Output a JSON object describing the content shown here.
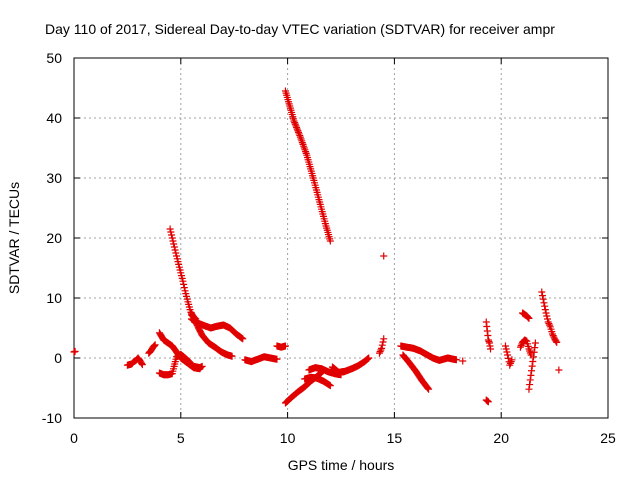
{
  "chart_data": {
    "type": "scatter",
    "title": "Day 110 of 2017, Sidereal Day-to-day VTEC variation (SDTVAR) for receiver ampr",
    "xlabel": "GPS time / hours",
    "ylabel": "SDTVAR / TECUs",
    "xlim": [
      0,
      25
    ],
    "ylim": [
      -10,
      50
    ],
    "xticks": [
      0,
      5,
      10,
      15,
      20,
      25
    ],
    "yticks": [
      -10,
      0,
      10,
      20,
      30,
      40,
      50
    ],
    "grid": true,
    "marker": "+",
    "color": "#e00000",
    "series": [
      {
        "name": "SDTVAR",
        "segments": [
          {
            "x": [
              0.0,
              0.05
            ],
            "y": [
              1.0,
              1.1
            ]
          },
          {
            "x": [
              2.5,
              2.7,
              2.8,
              2.9,
              3.0,
              3.1,
              3.2
            ],
            "y": [
              -1.2,
              -1.0,
              -0.6,
              -0.4,
              0.0,
              -0.5,
              -1.1
            ]
          },
          {
            "x": [
              3.5,
              3.6,
              3.7,
              3.8
            ],
            "y": [
              0.8,
              1.2,
              1.8,
              2.2
            ]
          },
          {
            "x": [
              4.0,
              4.2,
              4.4,
              4.6,
              4.8,
              5.0,
              5.3,
              5.6,
              5.9,
              6.0
            ],
            "y": [
              -2.5,
              -2.8,
              -2.8,
              -2.6,
              0.2,
              0.6,
              -0.3,
              -1.4,
              -1.6,
              -1.4
            ]
          },
          {
            "x": [
              4.0,
              4.2,
              4.4,
              4.6,
              4.8,
              5.0,
              5.3,
              5.6,
              5.9
            ],
            "y": [
              4.2,
              3.0,
              2.5,
              2.0,
              1.0,
              0.0,
              -0.8,
              -1.6,
              -1.8
            ]
          },
          {
            "x": [
              4.5,
              4.6,
              4.7,
              4.8,
              4.9,
              5.0,
              5.1,
              5.2,
              5.3,
              5.4,
              5.5,
              5.7
            ],
            "y": [
              21.5,
              20.0,
              18.5,
              17.0,
              15.6,
              14.2,
              12.8,
              11.2,
              9.8,
              8.5,
              7.2,
              6.5
            ]
          },
          {
            "x": [
              5.5,
              5.8,
              6.1,
              6.4,
              6.7,
              7.0,
              7.3,
              7.6,
              7.9
            ],
            "y": [
              6.5,
              5.8,
              5.4,
              5.0,
              5.3,
              5.5,
              5.0,
              4.0,
              3.2
            ]
          },
          {
            "x": [
              5.5,
              5.8,
              6.0,
              6.3,
              6.6,
              6.9,
              7.2,
              7.4
            ],
            "y": [
              7.5,
              5.2,
              3.8,
              2.5,
              1.8,
              1.0,
              0.5,
              0.3
            ]
          },
          {
            "x": [
              8.0,
              8.3,
              8.6,
              8.9,
              9.2,
              9.5
            ],
            "y": [
              -0.3,
              -0.6,
              -0.2,
              0.2,
              0.0,
              -0.2
            ]
          },
          {
            "x": [
              9.5,
              9.7,
              9.9
            ],
            "y": [
              2.0,
              1.8,
              2.0
            ]
          },
          {
            "x": [
              9.9,
              10.1,
              10.3,
              10.6,
              10.9,
              11.2,
              11.5,
              11.8,
              12.0
            ],
            "y": [
              44.5,
              42.0,
              39.5,
              36.8,
              33.8,
              30.0,
              26.0,
              22.0,
              19.5
            ]
          },
          {
            "x": [
              9.9,
              10.2,
              10.5,
              10.8,
              11.1,
              11.4,
              11.7
            ],
            "y": [
              -7.5,
              -6.5,
              -5.6,
              -4.8,
              -3.8,
              -3.0,
              -2.0
            ]
          },
          {
            "x": [
              10.8,
              11.1,
              11.4,
              11.7,
              12.0
            ],
            "y": [
              -3.5,
              -3.2,
              -3.4,
              -3.9,
              -4.6
            ]
          },
          {
            "x": [
              11.0,
              11.3,
              11.6,
              11.9,
              12.2,
              12.5
            ],
            "y": [
              -2.0,
              -1.6,
              -1.8,
              -2.3,
              -2.6,
              -2.8
            ]
          },
          {
            "x": [
              12.1,
              12.4,
              12.7,
              13.0,
              13.3,
              13.6,
              13.8
            ],
            "y": [
              -1.5,
              -2.4,
              -2.2,
              -1.8,
              -1.3,
              -0.6,
              0.0
            ]
          },
          {
            "x": [
              14.3,
              14.4,
              14.5
            ],
            "y": [
              0.8,
              1.6,
              3.2
            ]
          },
          {
            "x": [
              14.5
            ],
            "y": [
              17.0
            ]
          },
          {
            "x": [
              15.3,
              15.6,
              15.9,
              16.2,
              16.5,
              16.8,
              17.1,
              17.5,
              17.9
            ],
            "y": [
              2.0,
              1.8,
              1.6,
              1.2,
              0.6,
              0.0,
              -0.4,
              0.0,
              -0.3
            ]
          },
          {
            "x": [
              15.4,
              15.7,
              16.0,
              16.3,
              16.6
            ],
            "y": [
              0.5,
              -0.8,
              -2.2,
              -3.8,
              -5.2
            ]
          },
          {
            "x": [
              18.2
            ],
            "y": [
              -0.5
            ]
          },
          {
            "x": [
              19.3,
              19.35,
              19.4,
              19.45,
              19.5
            ],
            "y": [
              6.0,
              4.5,
              3.0,
              2.5,
              1.5
            ]
          },
          {
            "x": [
              19.3,
              19.4
            ],
            "y": [
              -7.0,
              -7.3
            ]
          },
          {
            "x": [
              20.2,
              20.3,
              20.4,
              20.5
            ],
            "y": [
              2.0,
              0.5,
              -1.2,
              -0.3
            ]
          },
          {
            "x": [
              20.9,
              21.0,
              21.1,
              21.2,
              21.3,
              21.4
            ],
            "y": [
              1.8,
              2.6,
              3.0,
              2.8,
              1.5,
              0.5
            ]
          },
          {
            "x": [
              21.0,
              21.2,
              21.3
            ],
            "y": [
              7.5,
              7.0,
              6.6
            ]
          },
          {
            "x": [
              21.3,
              21.6
            ],
            "y": [
              -5.2,
              2.5
            ]
          },
          {
            "x": [
              21.9,
              22.0,
              22.1,
              22.2,
              22.3,
              22.4,
              22.5,
              22.6
            ],
            "y": [
              11.0,
              9.2,
              7.5,
              6.0,
              5.2,
              4.0,
              3.2,
              2.6
            ]
          },
          {
            "x": [
              22.7
            ],
            "y": [
              -2.0
            ]
          }
        ]
      }
    ]
  }
}
